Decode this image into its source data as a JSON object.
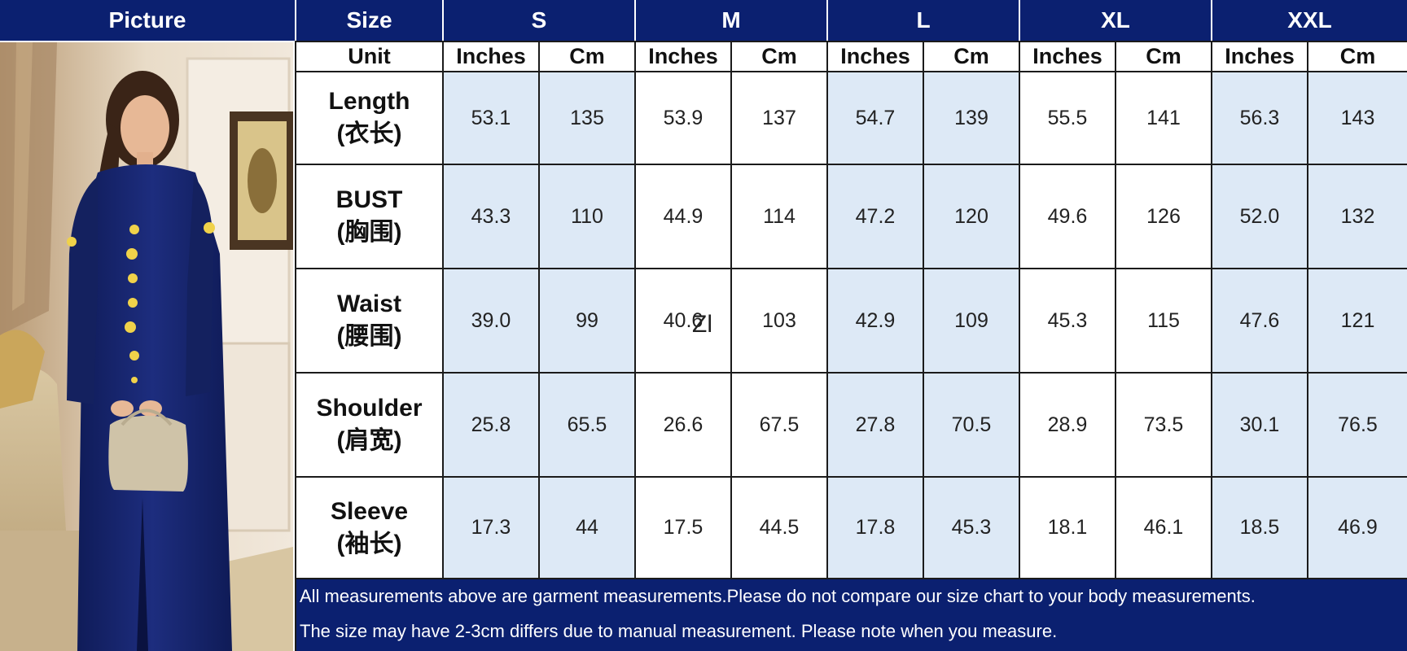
{
  "header": {
    "picture": "Picture",
    "size": "Size",
    "sizes": [
      "S",
      "M",
      "L",
      "XL",
      "XXL"
    ]
  },
  "unit_row": {
    "label": "Unit",
    "inches": "Inches",
    "cm": "Cm"
  },
  "rows": [
    {
      "label_en": "Length",
      "label_cn": "(衣长)",
      "values": [
        "53.1",
        "135",
        "53.9",
        "137",
        "54.7",
        "139",
        "55.5",
        "141",
        "56.3",
        "143"
      ]
    },
    {
      "label_en": "BUST",
      "label_cn": "(胸围)",
      "values": [
        "43.3",
        "110",
        "44.9",
        "114",
        "47.2",
        "120",
        "49.6",
        "126",
        "52.0",
        "132"
      ]
    },
    {
      "label_en": "Waist",
      "label_cn": "(腰围)",
      "values": [
        "39.0",
        "99",
        "40.6",
        "103",
        "42.9",
        "109",
        "45.3",
        "115",
        "47.6",
        "121"
      ]
    },
    {
      "label_en": "Shoulder",
      "label_cn": "(肩宽)",
      "values": [
        "25.8",
        "65.5",
        "26.6",
        "67.5",
        "27.8",
        "70.5",
        "28.9",
        "73.5",
        "30.1",
        "76.5"
      ]
    },
    {
      "label_en": "Sleeve",
      "label_cn": "(袖长)",
      "values": [
        "17.3",
        "44",
        "17.5",
        "44.5",
        "17.8",
        "45.3",
        "18.1",
        "46.1",
        "18.5",
        "46.9"
      ]
    }
  ],
  "watermark": "Zl",
  "notes": [
    "All measurements above are garment measurements.Please do not compare our size chart to your body measurements.",
    "The size may have 2-3cm differs due to manual measurement. Please note when you measure."
  ],
  "colors": {
    "header_bg": "#0b2070",
    "blue_cell": "#dde9f6",
    "dress": "#16246a"
  }
}
